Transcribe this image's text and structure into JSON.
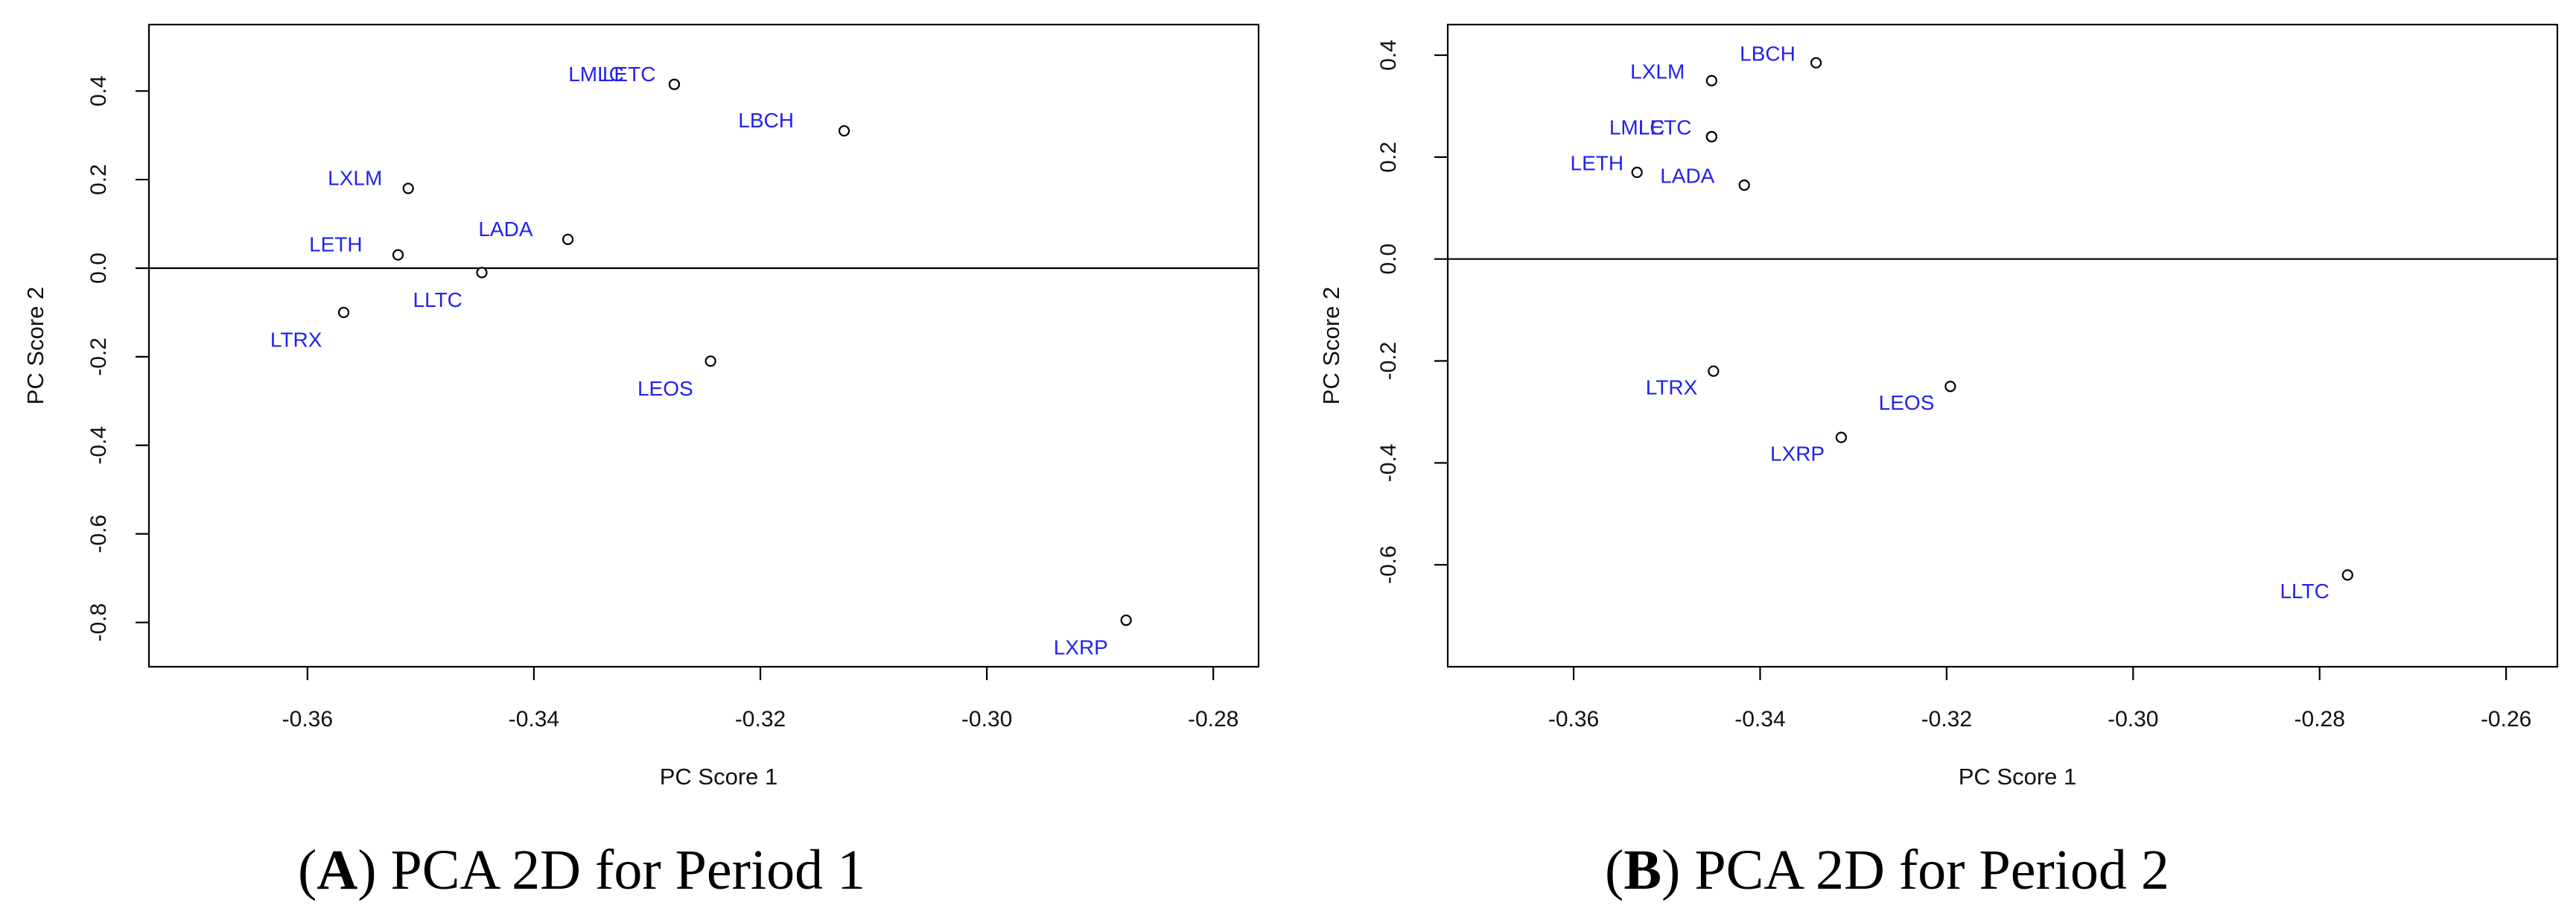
{
  "chart_data": [
    {
      "type": "scatter",
      "id": "A",
      "caption": {
        "letter": "A",
        "paren_open": "(",
        "paren_close": ")",
        "text": " PCA 2D for  Period 1"
      },
      "xlabel": "PC Score 1",
      "ylabel": "PC Score 2",
      "xlim": [
        -0.374,
        -0.276
      ],
      "ylim": [
        -0.9,
        0.55
      ],
      "xticks": [
        -0.36,
        -0.34,
        -0.32,
        -0.3,
        -0.28
      ],
      "xtick_labels": [
        "-0.36",
        "-0.34",
        "-0.32",
        "-0.30",
        "-0.28"
      ],
      "yticks": [
        0.4,
        0.2,
        0.0,
        -0.2,
        -0.4,
        -0.6,
        -0.8
      ],
      "ytick_labels": [
        "0.4",
        "0.2",
        "0.0",
        "-0.2",
        "-0.4",
        "-0.6",
        "-0.8"
      ],
      "hline": 0,
      "points": [
        {
          "label": "LMLC",
          "x": -0.3276,
          "y": 0.415,
          "lx": -0.3345,
          "ly": 0.435
        },
        {
          "label": "LETC",
          "x": -0.3276,
          "y": 0.415,
          "lx": -0.3316,
          "ly": 0.435
        },
        {
          "label": "LBCH",
          "x": -0.3126,
          "y": 0.31,
          "lx": -0.3195,
          "ly": 0.33
        },
        {
          "label": "LXLM",
          "x": -0.3511,
          "y": 0.18,
          "lx": -0.3558,
          "ly": 0.2
        },
        {
          "label": "LADA",
          "x": -0.337,
          "y": 0.065,
          "lx": -0.3425,
          "ly": 0.085
        },
        {
          "label": "LETH",
          "x": -0.352,
          "y": 0.03,
          "lx": -0.3575,
          "ly": 0.05
        },
        {
          "label": "LLTC",
          "x": -0.3446,
          "y": -0.01,
          "lx": -0.3485,
          "ly": -0.075
        },
        {
          "label": "LTRX",
          "x": -0.3568,
          "y": -0.1,
          "lx": -0.361,
          "ly": -0.165
        },
        {
          "label": "LEOS",
          "x": -0.3244,
          "y": -0.21,
          "lx": -0.3284,
          "ly": -0.275
        },
        {
          "label": "LXRP",
          "x": -0.2877,
          "y": -0.795,
          "lx": -0.2917,
          "ly": -0.86
        }
      ]
    },
    {
      "type": "scatter",
      "id": "B",
      "caption": {
        "letter": "B",
        "paren_open": "(",
        "paren_close": ")",
        "text": " PCA 2D for Period 2"
      },
      "xlabel": "PC Score 1",
      "ylabel": "PC Score 2",
      "xlim": [
        -0.3735,
        -0.2545
      ],
      "ylim": [
        -0.8,
        0.46
      ],
      "xticks": [
        -0.36,
        -0.34,
        -0.32,
        -0.3,
        -0.28,
        -0.26
      ],
      "xtick_labels": [
        "-0.36",
        "-0.34",
        "-0.32",
        "-0.30",
        "-0.28",
        "-0.26"
      ],
      "yticks": [
        0.4,
        0.2,
        0.0,
        -0.2,
        -0.4,
        -0.6
      ],
      "ytick_labels": [
        "0.4",
        "0.2",
        "0.0",
        "-0.2",
        "-0.4",
        "-0.6"
      ],
      "hline": 0,
      "points": [
        {
          "label": "LBCH",
          "x": -0.334,
          "y": 0.385,
          "lx": -0.3392,
          "ly": 0.4
        },
        {
          "label": "LXLM",
          "x": -0.3452,
          "y": 0.35,
          "lx": -0.351,
          "ly": 0.365
        },
        {
          "label": "LMLC",
          "x": -0.3452,
          "y": 0.24,
          "lx": -0.3532,
          "ly": 0.255
        },
        {
          "label": "LETC",
          "x": -0.3452,
          "y": 0.24,
          "lx": -0.3502,
          "ly": 0.255
        },
        {
          "label": "LETH",
          "x": -0.3532,
          "y": 0.17,
          "lx": -0.3575,
          "ly": 0.185
        },
        {
          "label": "LADA",
          "x": -0.3417,
          "y": 0.145,
          "lx": -0.3478,
          "ly": 0.16
        },
        {
          "label": "LTRX",
          "x": -0.345,
          "y": -0.22,
          "lx": -0.3495,
          "ly": -0.255
        },
        {
          "label": "LEOS",
          "x": -0.3196,
          "y": -0.25,
          "lx": -0.3243,
          "ly": -0.285
        },
        {
          "label": "LXRP",
          "x": -0.3313,
          "y": -0.35,
          "lx": -0.336,
          "ly": -0.385
        },
        {
          "label": "LLTC",
          "x": -0.277,
          "y": -0.62,
          "lx": -0.2816,
          "ly": -0.655
        }
      ]
    }
  ]
}
